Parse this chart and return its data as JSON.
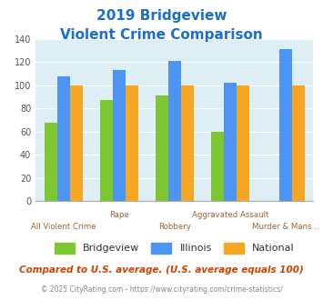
{
  "title_line1": "2019 Bridgeview",
  "title_line2": "Violent Crime Comparison",
  "categories": [
    "All Violent Crime",
    "Rape",
    "Robbery",
    "Aggravated Assault",
    "Murder & Mans..."
  ],
  "series": {
    "Bridgeview": [
      68,
      87,
      91,
      60,
      0
    ],
    "Illinois": [
      108,
      113,
      121,
      102,
      131
    ],
    "National": [
      100,
      100,
      100,
      100,
      100
    ]
  },
  "colors": {
    "Bridgeview": "#7dc832",
    "Illinois": "#4d94f5",
    "National": "#f5a623"
  },
  "ylim": [
    0,
    140
  ],
  "yticks": [
    0,
    20,
    40,
    60,
    80,
    100,
    120,
    140
  ],
  "title_color": "#1a6fcc",
  "plot_bg": "#ddeef5",
  "footer_note": "Compared to U.S. average. (U.S. average equals 100)",
  "footer_note_color": "#cc4400",
  "copyright": "© 2025 CityRating.com - https://www.cityrating.com/crime-statistics/",
  "copyright_color": "#888888",
  "cat_label_color": "#996633",
  "x_row1": [
    "",
    "Rape",
    "",
    "Aggravated Assault",
    ""
  ],
  "x_row2": [
    "All Violent Crime",
    "",
    "Robbery",
    "",
    "Murder & Mans..."
  ]
}
